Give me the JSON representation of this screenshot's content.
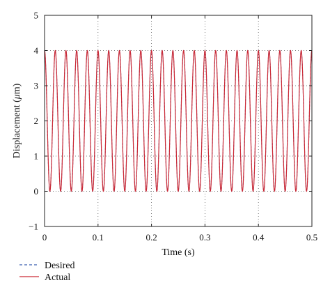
{
  "chart_data": {
    "type": "line",
    "xlabel": "Time (s)",
    "ylabel_prefix": "Displacement (",
    "ylabel_unit_mu": "μ",
    "ylabel_suffix": "m)",
    "xlim": [
      0,
      0.5
    ],
    "ylim": [
      -1,
      5
    ],
    "xticks": [
      0,
      0.1,
      0.2,
      0.3,
      0.4,
      0.5
    ],
    "xtick_labels": [
      "0",
      "0.1",
      "0.2",
      "0.3",
      "0.4",
      "0.5"
    ],
    "yticks": [
      -1,
      0,
      1,
      2,
      3,
      4,
      5
    ],
    "ytick_labels": [
      "−1",
      "0",
      "1",
      "2",
      "3",
      "4",
      "5"
    ],
    "grid": "dotted",
    "legend_position": "bottom-left, below axes",
    "series": [
      {
        "name": "Desired",
        "style": "dashed",
        "color": "#3a5fb0",
        "function": "sine",
        "offset": 2,
        "amplitude": 2,
        "frequency_hz": 50,
        "phase": "cosine"
      },
      {
        "name": "Actual",
        "style": "solid",
        "color": "#cc2a36",
        "function": "sine",
        "offset": 2,
        "amplitude": 2,
        "frequency_hz": 50,
        "phase": "cosine"
      }
    ]
  }
}
